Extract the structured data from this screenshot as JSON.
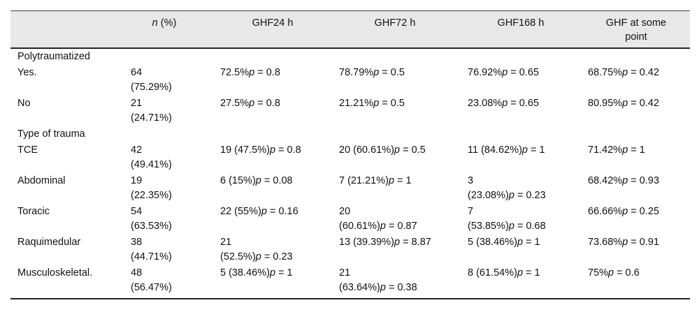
{
  "headers": {
    "n_italic": "n",
    "n_rest": " (%)",
    "h24": "GHF24 h",
    "h72": "GHF72 h",
    "h168": "GHF168 h",
    "h_any_line1": "GHF at some",
    "h_any_line2": "point"
  },
  "sections": [
    {
      "title": "Polytraumatized",
      "rows": [
        {
          "label": "Yes.",
          "n1": "64",
          "n2": "(75.29%)",
          "c24": [
            "72.5%",
            "",
            "0.8"
          ],
          "c72": [
            "78.79%",
            "",
            "0.5"
          ],
          "c168": [
            "76.92%",
            "",
            "0.65"
          ],
          "cany": [
            "68.75%",
            "",
            "0.42"
          ]
        },
        {
          "label": "No",
          "n1": "21",
          "n2": "(24.71%)",
          "c24": [
            "27.5%",
            "",
            "0.8"
          ],
          "c72": [
            "21.21%",
            "",
            "0.5"
          ],
          "c168": [
            "23.08%",
            "",
            "0.65"
          ],
          "cany": [
            "80.95%",
            "",
            "0.42"
          ]
        }
      ]
    },
    {
      "title": "Type of trauma",
      "rows": [
        {
          "label": "TCE",
          "n1": "42",
          "n2": "(49.41%)",
          "c24": [
            "19 (47.5%)",
            "",
            "0.8"
          ],
          "c72": [
            "20 (60.61%)",
            "",
            "0.5"
          ],
          "c168": [
            "11 (84.62%)",
            "",
            "1"
          ],
          "cany": [
            "71.42%",
            "",
            "1"
          ]
        },
        {
          "label": "Abdominal",
          "n1": "19",
          "n2": "(22.35%)",
          "c24": [
            "6 (15%)",
            "",
            "0.08"
          ],
          "c72": [
            "7 (21.21%)",
            "",
            "1"
          ],
          "c168": [
            "3",
            "(23.08%)",
            "0.23"
          ],
          "cany": [
            "68.42%",
            "",
            "0.93"
          ]
        },
        {
          "label": "Toracic",
          "n1": "54",
          "n2": "(63.53%)",
          "c24": [
            "22 (55%)",
            "",
            "0.16"
          ],
          "c72": [
            "20",
            "(60.61%)",
            "0.87"
          ],
          "c168": [
            "7",
            "(53.85%)",
            "0.68"
          ],
          "cany": [
            "66.66%",
            "",
            "0.25"
          ]
        },
        {
          "label": "Raquimedular",
          "n1": "38",
          "n2": "(44.71%)",
          "c24": [
            "21",
            "(52.5%)",
            "0.23"
          ],
          "c72": [
            "13 (39.39%)",
            "",
            "8.87"
          ],
          "c168": [
            "5 (38.46%)",
            "",
            "1"
          ],
          "cany": [
            "73.68%",
            "",
            "0.91"
          ]
        },
        {
          "label": "Musculoskeletal.",
          "n1": "48",
          "n2": "(56.47%)",
          "c24": [
            "5 (38.46%)",
            "",
            "1"
          ],
          "c72": [
            "21",
            "(63.64%)",
            "0.38"
          ],
          "c168": [
            "8 (61.54%)",
            "",
            "1"
          ],
          "cany": [
            "75%",
            "",
            "0.6"
          ]
        }
      ]
    }
  ],
  "p_symbol": "p",
  "eq_symbol": " = "
}
